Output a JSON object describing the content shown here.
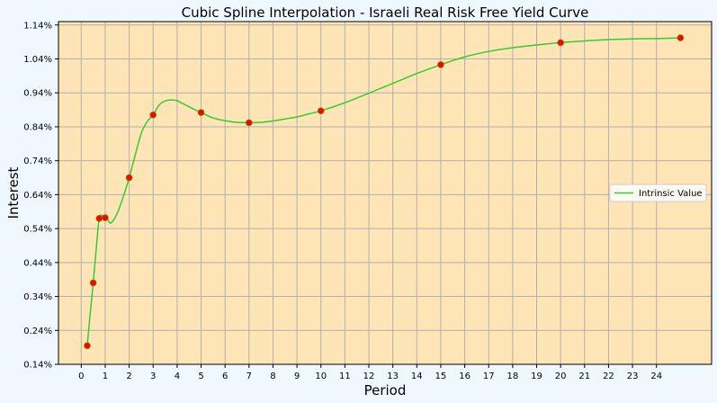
{
  "chart_data": {
    "type": "line",
    "title": "Cubic Spline Interpolation - Israeli Real Risk Free Yield Curve",
    "xlabel": "Period",
    "ylabel": "Interest",
    "xlim": [
      -0.95,
      26.3
    ],
    "ylim": [
      0.14,
      1.15
    ],
    "x_ticks": [
      0,
      1,
      2,
      3,
      4,
      5,
      6,
      7,
      8,
      9,
      10,
      11,
      12,
      13,
      14,
      15,
      16,
      17,
      18,
      19,
      20,
      21,
      22,
      23,
      24
    ],
    "x_tick_labels": [
      "0",
      "1",
      "2",
      "3",
      "4",
      "5",
      "6",
      "7",
      "8",
      "9",
      "10",
      "11",
      "12",
      "13",
      "14",
      "15",
      "16",
      "17",
      "18",
      "19",
      "20",
      "21",
      "22",
      "23",
      "24"
    ],
    "y_ticks": [
      0.14,
      0.24,
      0.34,
      0.44,
      0.54,
      0.64,
      0.74,
      0.84,
      0.94,
      1.04,
      1.14
    ],
    "y_tick_labels": [
      "0.14%",
      "0.24%",
      "0.34%",
      "0.44%",
      "0.54%",
      "0.64%",
      "0.74%",
      "0.84%",
      "0.94%",
      "1.04%",
      "1.14%"
    ],
    "grid": true,
    "legend_position": "center-right",
    "colors": {
      "figure_background": "#f0f8ff",
      "plot_background": "#ffe4b5",
      "line": "#32cd32",
      "marker": "#ff0000",
      "marker_edge": "#808000",
      "grid": "#b0b0b0"
    },
    "points": {
      "x": [
        0.25,
        0.5,
        0.75,
        1,
        2,
        3,
        5,
        7,
        10,
        15,
        20,
        25
      ],
      "y": [
        0.195,
        0.38,
        0.57,
        0.572,
        0.69,
        0.875,
        0.882,
        0.852,
        0.887,
        1.023,
        1.088,
        1.102
      ]
    },
    "series": [
      {
        "name": "Intrinsic Value",
        "x": [
          0.25,
          0.375,
          0.5,
          0.625,
          0.75,
          0.875,
          1,
          1.1,
          1.25,
          1.5,
          1.75,
          2,
          2.25,
          2.5,
          2.75,
          3,
          3.25,
          3.5,
          3.75,
          4,
          4.25,
          4.5,
          4.75,
          5,
          5.5,
          6,
          6.5,
          7,
          7.5,
          8,
          8.5,
          9,
          9.5,
          10,
          11,
          12,
          13,
          14,
          15,
          16,
          17,
          18,
          19,
          20,
          21,
          22,
          23,
          24,
          25
        ],
        "y": [
          0.195,
          0.29,
          0.38,
          0.48,
          0.57,
          0.578,
          0.572,
          0.566,
          0.557,
          0.585,
          0.633,
          0.69,
          0.756,
          0.82,
          0.855,
          0.875,
          0.904,
          0.916,
          0.919,
          0.917,
          0.908,
          0.899,
          0.89,
          0.882,
          0.866,
          0.858,
          0.853,
          0.852,
          0.853,
          0.857,
          0.863,
          0.869,
          0.878,
          0.887,
          0.911,
          0.939,
          0.968,
          0.997,
          1.023,
          1.046,
          1.062,
          1.073,
          1.081,
          1.088,
          1.093,
          1.097,
          1.099,
          1.1,
          1.102
        ]
      }
    ]
  }
}
